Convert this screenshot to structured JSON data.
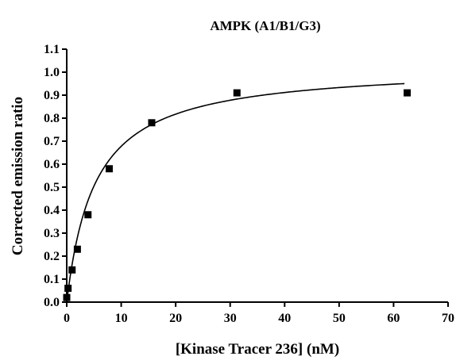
{
  "chart_data": {
    "type": "scatter",
    "title": "AMPK (A1/B1/G3)",
    "xlabel": "[Kinase Tracer 236] (nM)",
    "ylabel": "Corrected emission ratio",
    "xlim": [
      0,
      70
    ],
    "ylim": [
      0.0,
      1.1
    ],
    "x_ticks": [
      "0",
      "10",
      "20",
      "30",
      "40",
      "50",
      "60",
      "70"
    ],
    "y_ticks": [
      "0.0",
      "0.1",
      "0.2",
      "0.3",
      "0.4",
      "0.5",
      "0.6",
      "0.7",
      "0.8",
      "0.9",
      "1.0",
      "1.1"
    ],
    "grid": false,
    "legend": "none",
    "series": [
      {
        "marker": "square",
        "points": [
          {
            "x": 0.0,
            "y": 0.02
          },
          {
            "x": 0.24,
            "y": 0.06
          },
          {
            "x": 0.98,
            "y": 0.14
          },
          {
            "x": 1.95,
            "y": 0.23
          },
          {
            "x": 3.9,
            "y": 0.38
          },
          {
            "x": 7.8,
            "y": 0.58
          },
          {
            "x": 15.6,
            "y": 0.78
          },
          {
            "x": 31.25,
            "y": 0.91
          },
          {
            "x": 62.5,
            "y": 0.91
          }
        ]
      }
    ],
    "fit_curve": {
      "model": "one-site binding (hyperbola)",
      "bmax": 1.03,
      "kd": 5.2,
      "x_range": [
        0,
        62
      ]
    }
  }
}
